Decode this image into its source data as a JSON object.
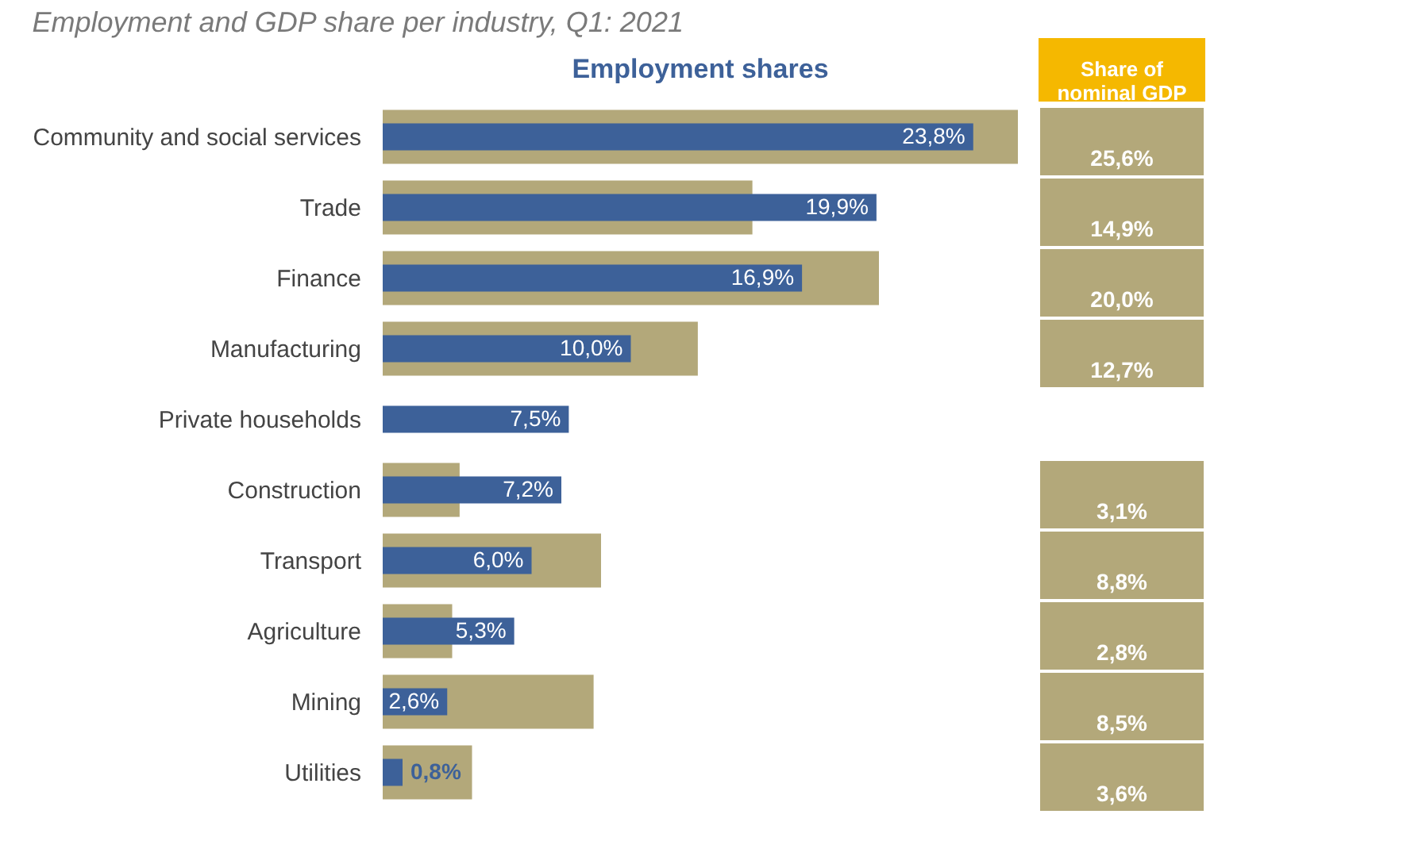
{
  "chart_data": {
    "type": "bar",
    "orientation": "horizontal",
    "title": "Employment and GDP share per industry, Q1: 2021",
    "categories": [
      "Community and social services",
      "Trade",
      "Finance",
      "Manufacturing",
      "Private households",
      "Construction",
      "Transport",
      "Agriculture",
      "Mining",
      "Utilities"
    ],
    "series": [
      {
        "name": "Share of nominal GDP",
        "color": "#b3a87a",
        "values": [
          25.6,
          14.9,
          20.0,
          12.7,
          null,
          3.1,
          8.8,
          2.8,
          8.5,
          3.6
        ],
        "value_labels": [
          "25,6%",
          "14,9%",
          "20,0%",
          "12,7%",
          null,
          "3,1%",
          "8,8%",
          "2,8%",
          "8,5%",
          "3,6%"
        ]
      },
      {
        "name": "Employment shares",
        "color": "#3d6199",
        "values": [
          23.8,
          19.9,
          16.9,
          10.0,
          7.5,
          7.2,
          6.0,
          5.3,
          2.6,
          0.8
        ],
        "value_labels": [
          "23,8%",
          "19,9%",
          "16,9%",
          "10,0%",
          "7,5%",
          "7,2%",
          "6,0%",
          "5,3%",
          "2,6%",
          "0,8%"
        ]
      }
    ]
  }
}
